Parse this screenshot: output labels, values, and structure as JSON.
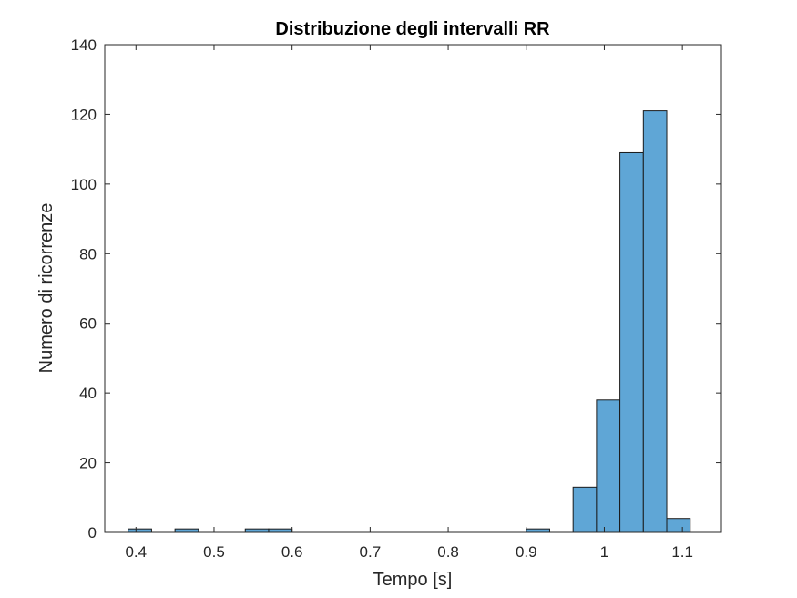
{
  "chart_data": {
    "type": "bar",
    "title": "Distribuzione degli intervalli RR",
    "xlabel": "Tempo [s]",
    "ylabel": "Numero di ricorrenze",
    "xlim": [
      0.36,
      1.15
    ],
    "ylim": [
      0,
      140
    ],
    "xticks": [
      0.4,
      0.5,
      0.6,
      0.7,
      0.8,
      0.9,
      1,
      1.1
    ],
    "xtick_labels": [
      "0.4",
      "0.5",
      "0.6",
      "0.7",
      "0.8",
      "0.9",
      "1",
      "1.1"
    ],
    "yticks": [
      0,
      20,
      40,
      60,
      80,
      100,
      120,
      140
    ],
    "ytick_labels": [
      "0",
      "20",
      "40",
      "60",
      "80",
      "100",
      "120",
      "140"
    ],
    "bin_width": 0.03,
    "bins": [
      {
        "start": 0.39,
        "end": 0.42,
        "count": 1
      },
      {
        "start": 0.45,
        "end": 0.48,
        "count": 1
      },
      {
        "start": 0.54,
        "end": 0.57,
        "count": 1
      },
      {
        "start": 0.57,
        "end": 0.6,
        "count": 1
      },
      {
        "start": 0.9,
        "end": 0.93,
        "count": 1
      },
      {
        "start": 0.96,
        "end": 0.99,
        "count": 13
      },
      {
        "start": 0.99,
        "end": 1.02,
        "count": 38
      },
      {
        "start": 1.02,
        "end": 1.05,
        "count": 109
      },
      {
        "start": 1.05,
        "end": 1.08,
        "count": 121
      },
      {
        "start": 1.08,
        "end": 1.11,
        "count": 4
      }
    ],
    "bar_color": "#5fa6d6",
    "bar_edge_color": "#1a1a1a",
    "grid": false,
    "legend": "none"
  }
}
